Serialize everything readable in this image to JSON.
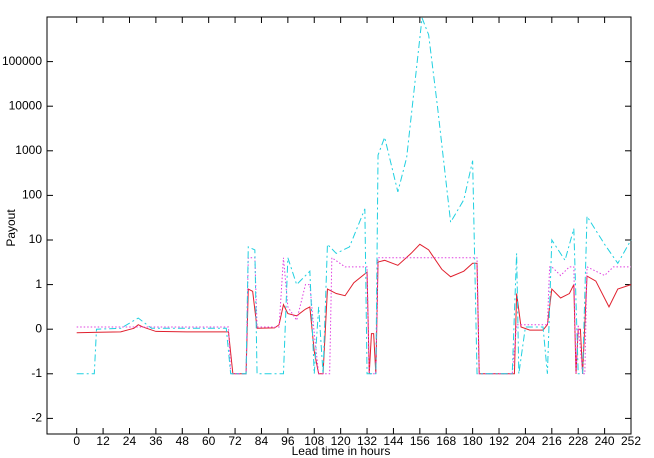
{
  "chart_data": {
    "type": "line",
    "xlabel": "Lead time in hours",
    "ylabel": "Payout",
    "yscale": "linear below 1, log above 1",
    "xlim": [
      -13.5,
      252
    ],
    "xticks": [
      0,
      12,
      24,
      36,
      48,
      60,
      72,
      84,
      96,
      108,
      120,
      132,
      144,
      156,
      168,
      180,
      192,
      204,
      216,
      228,
      240,
      252
    ],
    "ylim": [
      -2.35,
      1000000
    ],
    "yticks": [
      -2,
      -1,
      0,
      1,
      10,
      100,
      1000,
      10000,
      100000
    ],
    "series": [
      {
        "color": "#e0202e",
        "dash": "solid",
        "x": [
          0,
          10,
          20,
          26,
          28,
          30,
          36,
          50,
          69,
          71,
          72,
          77,
          78,
          80,
          82,
          90,
          92,
          94,
          96,
          100,
          104,
          106,
          108,
          110,
          112,
          114,
          118,
          122,
          126,
          132,
          133,
          134,
          135,
          136,
          137,
          140,
          146,
          152,
          156,
          160,
          166,
          170,
          176,
          180,
          182,
          183,
          198,
          199,
          200,
          202,
          206,
          212,
          214,
          216,
          220,
          224,
          226,
          227,
          228,
          229,
          230,
          232,
          236,
          242,
          246,
          252
        ],
        "values": [
          -0.08,
          -0.07,
          -0.06,
          0.02,
          0.1,
          0.05,
          -0.05,
          -0.06,
          -0.06,
          -1,
          -1,
          -1,
          0.9,
          0.85,
          0.02,
          0.03,
          0.1,
          0.55,
          0.35,
          0.3,
          0.45,
          0.5,
          -0.5,
          -1,
          -1,
          0.9,
          0.8,
          0.75,
          1.1,
          1.9,
          -1,
          -0.1,
          -0.1,
          -1,
          3.2,
          3.5,
          2.7,
          5,
          8,
          6,
          2.2,
          1.5,
          2,
          3,
          3,
          -1,
          -1,
          -1,
          0.8,
          0.05,
          -0.02,
          -0.02,
          0.1,
          0.9,
          0.7,
          0.8,
          1,
          -1,
          0,
          0,
          -1,
          1.55,
          1.2,
          0.5,
          0.9,
          1
        ]
      },
      {
        "color": "#e040e0",
        "dash": "dotted",
        "x": [
          0,
          69,
          70,
          77,
          78,
          81,
          82,
          92,
          94,
          96,
          100,
          104,
          106,
          108,
          110,
          112,
          115,
          116,
          122,
          132,
          133,
          136,
          137,
          182,
          183,
          198,
          200,
          202,
          214,
          215,
          216,
          220,
          224,
          226,
          227,
          228,
          230,
          231,
          232,
          240,
          244,
          252
        ],
        "values": [
          0.05,
          0.05,
          -1,
          -1,
          4,
          4,
          0.05,
          0.05,
          4,
          0.5,
          0.2,
          1,
          1,
          -0.1,
          -1,
          -1,
          -1,
          4,
          2.5,
          2.5,
          -1,
          -1,
          4,
          4,
          -1,
          -1,
          0.1,
          0.1,
          0.1,
          2.5,
          2.5,
          1.6,
          2.5,
          2.5,
          -1,
          0.1,
          -1,
          -1,
          2.5,
          1.6,
          2.5,
          2.5
        ]
      },
      {
        "color": "#20d0e0",
        "dash": "dashdot",
        "x": [
          0,
          8,
          9,
          20,
          28,
          34,
          68,
          70,
          77,
          78,
          81,
          82,
          94,
          96,
          100,
          106,
          108,
          110,
          112,
          114,
          118,
          124,
          131,
          132,
          136,
          137,
          140,
          146,
          150,
          157,
          160,
          164,
          170,
          176,
          180,
          182,
          198,
          200,
          201,
          204,
          212,
          214,
          216,
          222,
          226,
          228,
          230,
          232,
          240,
          246,
          252
        ],
        "values": [
          -1,
          -1,
          0,
          0.02,
          0.25,
          0.02,
          0.02,
          -1,
          -1,
          7,
          6,
          -1,
          -1,
          4,
          1,
          2,
          -1,
          0.5,
          -1,
          8,
          5,
          7,
          50,
          -1,
          -1,
          800,
          2000,
          120,
          700,
          950000,
          400000,
          10000,
          25,
          80,
          600,
          -1,
          -1,
          5,
          -1,
          0.05,
          0.05,
          -1,
          10,
          3.5,
          18,
          -1,
          -1,
          34,
          8,
          3,
          10
        ]
      }
    ]
  }
}
